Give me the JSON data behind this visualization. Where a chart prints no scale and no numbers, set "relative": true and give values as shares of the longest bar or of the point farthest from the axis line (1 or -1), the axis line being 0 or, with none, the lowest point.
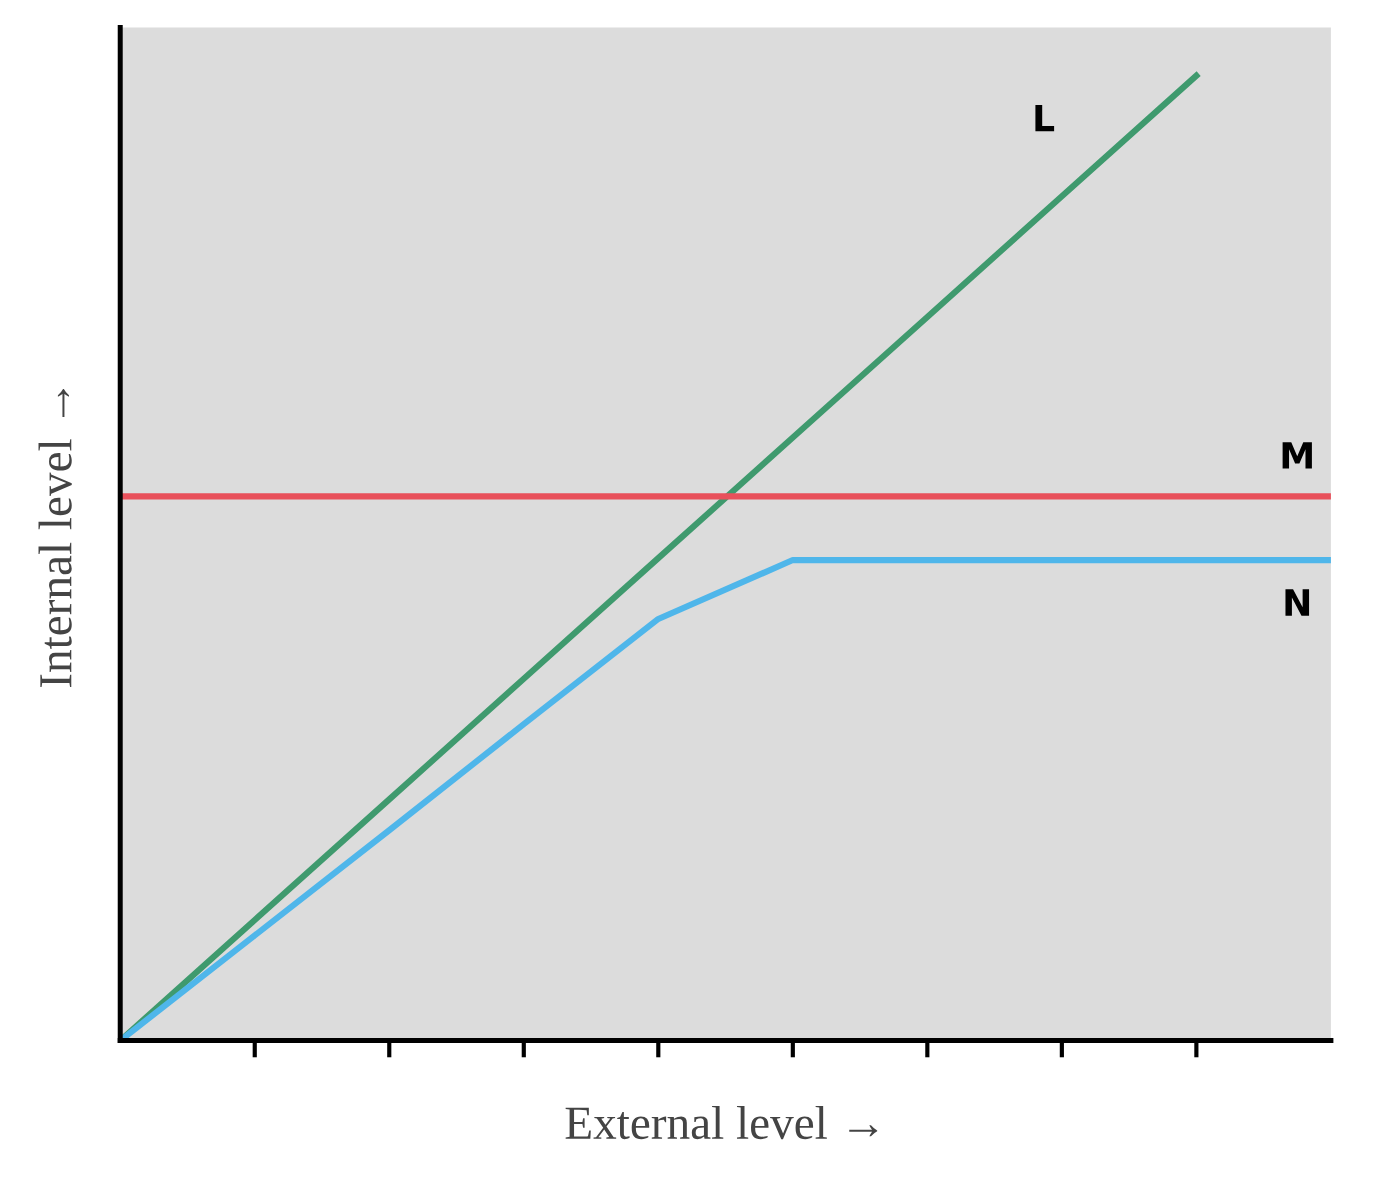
{
  "chart_data": {
    "type": "line",
    "relative": true,
    "xlabel": "External level →",
    "ylabel": "Internal level →",
    "categories": [
      null,
      null,
      null,
      null,
      null,
      null,
      null,
      null,
      null,
      null
    ],
    "series": [
      {
        "name": "L",
        "color": "#3f9a6e",
        "values": [
          0,
          0.125,
          0.25,
          0.375,
          0.5,
          0.625,
          0.75,
          0.875,
          1,
          null
        ]
      },
      {
        "name": "M",
        "color": "#e8505b",
        "values": [
          0.564,
          0.564,
          0.564,
          0.564,
          0.564,
          0.564,
          0.564,
          0.564,
          0.564,
          0.564
        ]
      },
      {
        "name": "N",
        "color": "#4fb6ea",
        "values": [
          0,
          0.109,
          0.218,
          0.328,
          0.437,
          0.498,
          0.498,
          0.498,
          0.498,
          0.498
        ]
      }
    ],
    "grid": false,
    "legend": false,
    "marker": "none",
    "line_style": "solid"
  }
}
